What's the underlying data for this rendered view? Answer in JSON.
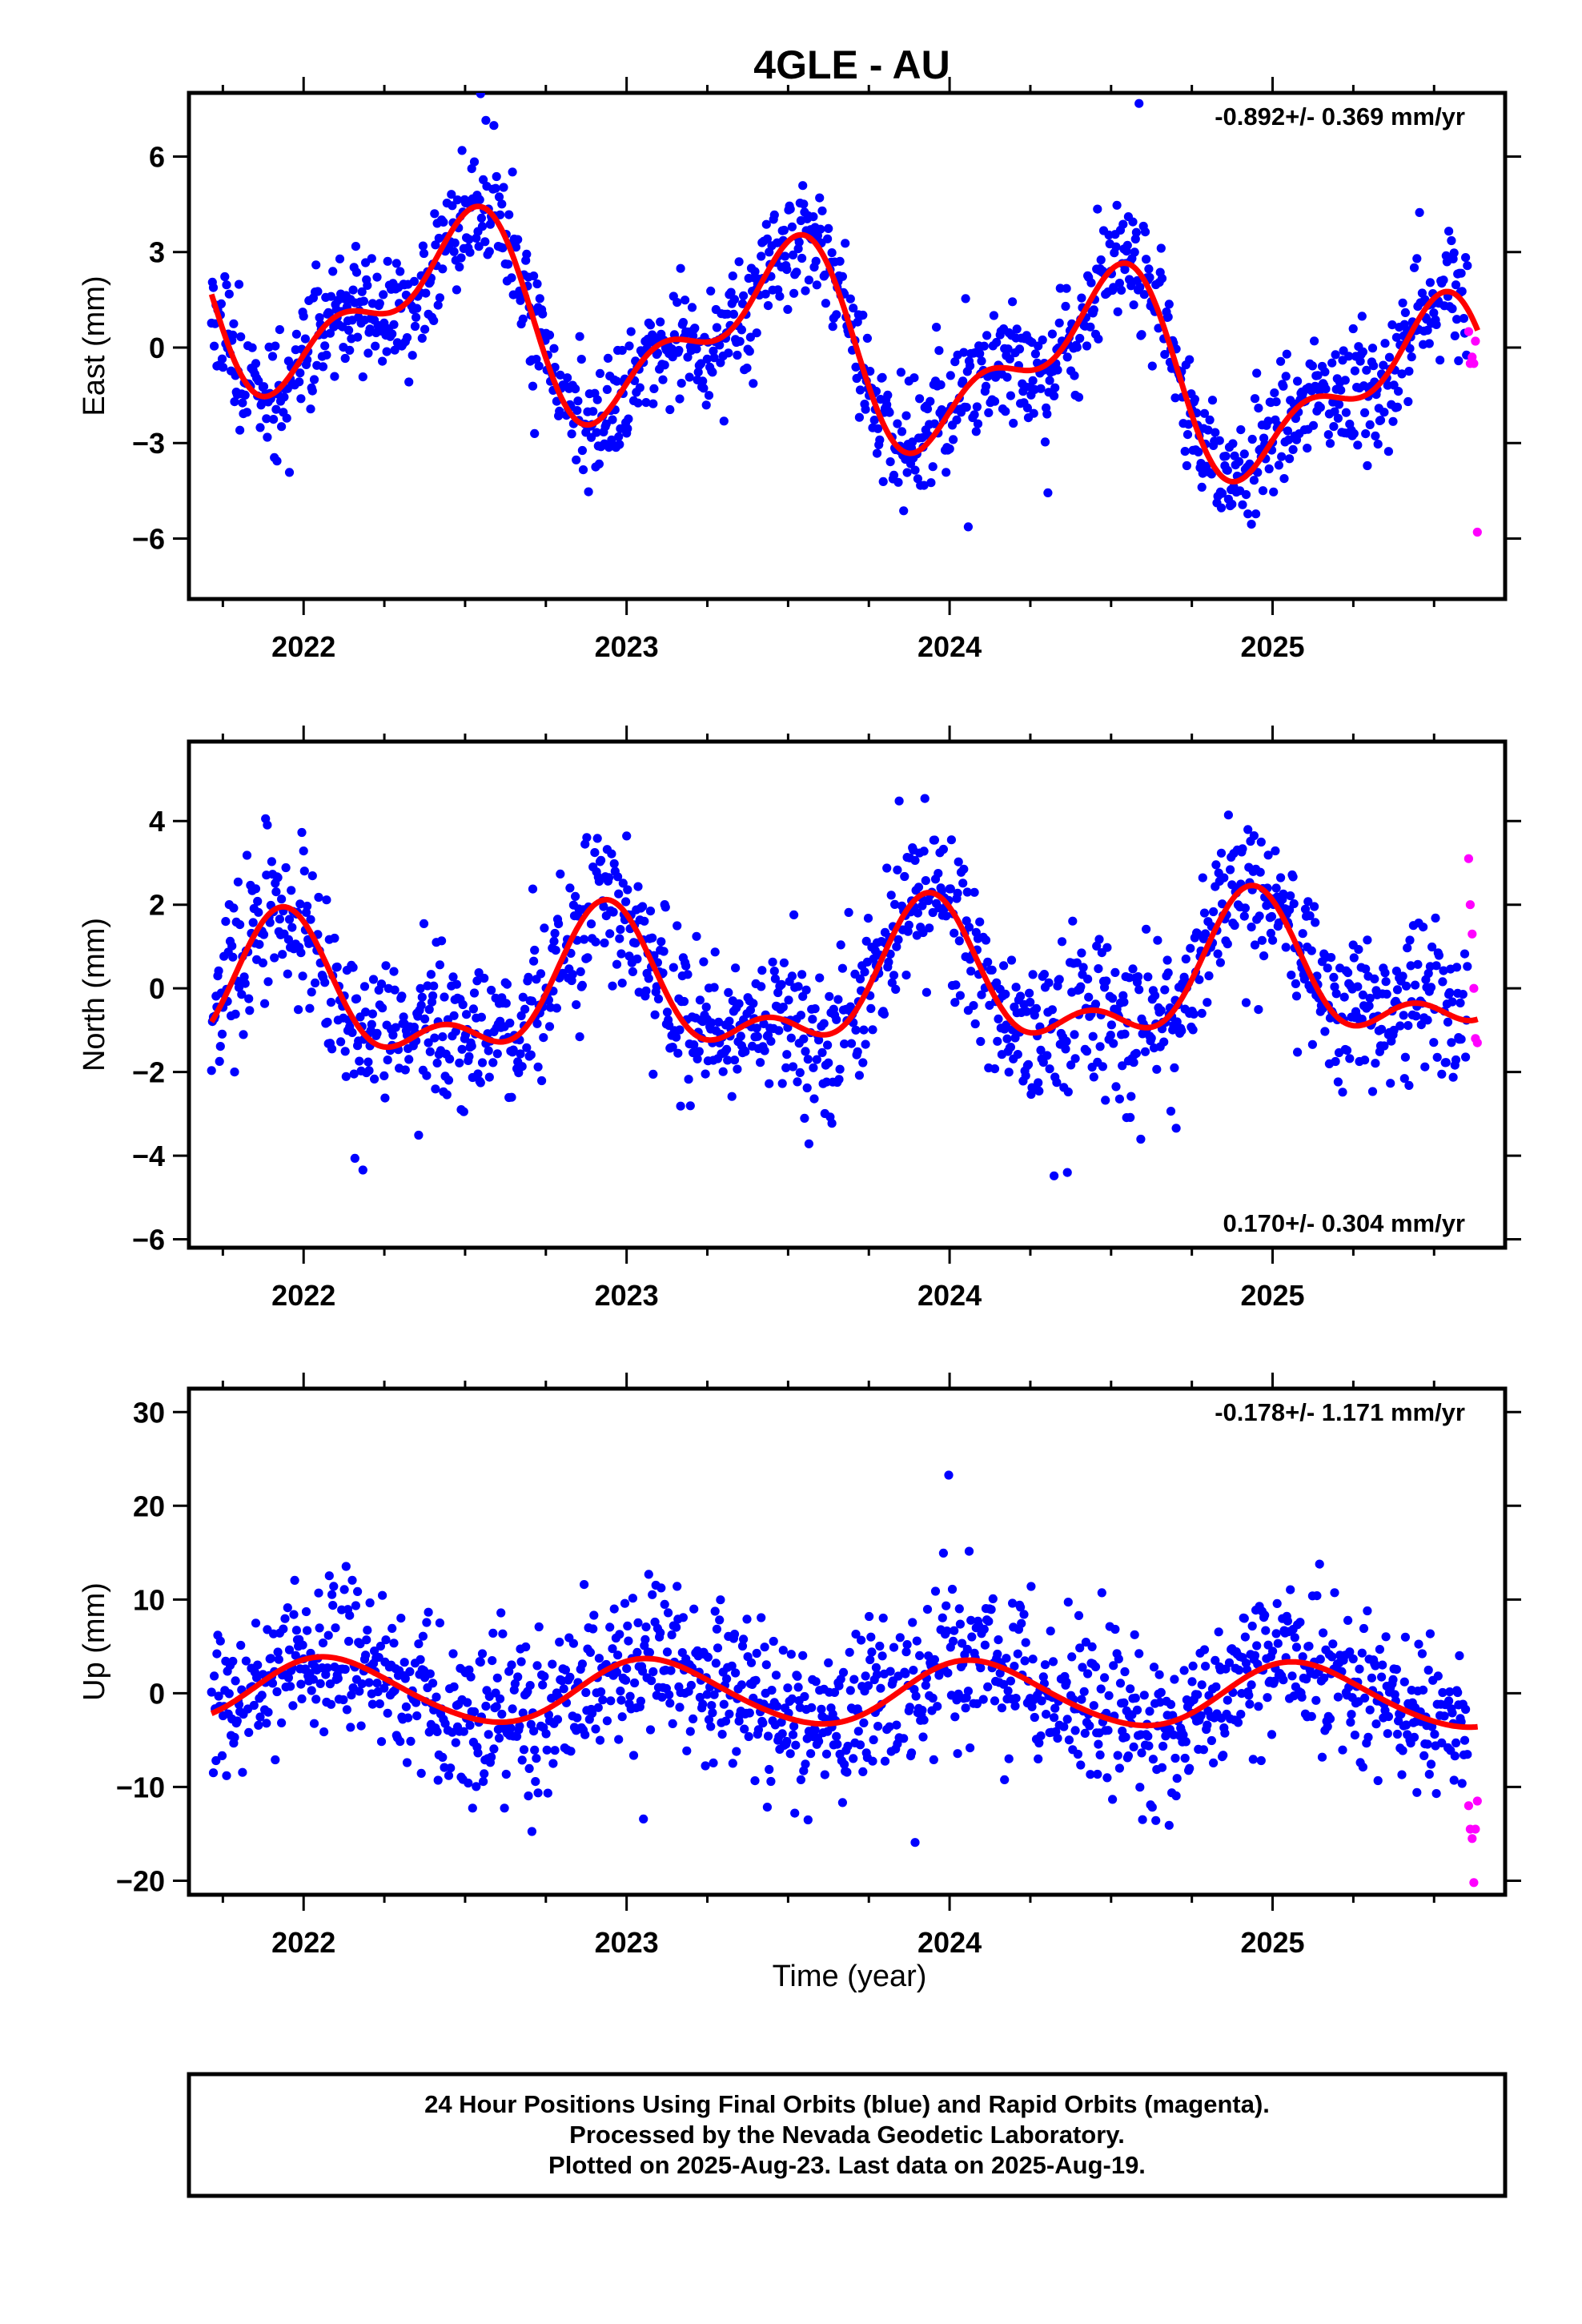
{
  "figure": {
    "title": "4GLE - AU",
    "xlabel": "Time (year)",
    "footer_lines": [
      "24 Hour Positions Using Final Orbits (blue) and Rapid Orbits (magenta).",
      "Processed by the Nevada Geodetic Laboratory.",
      "Plotted on 2025-Aug-23. Last data on 2025-Aug-19."
    ]
  },
  "colors": {
    "final_orbits": "#0000ff",
    "rapid_orbits": "#ff00ff",
    "model_fit": "#ff0000",
    "frame": "#000000"
  },
  "chart_data": [
    {
      "type": "scatter",
      "ylabel": "East (mm)",
      "rate_text": "-0.892+/- 0.369 mm/yr",
      "rate_position": "top-right",
      "xlim": [
        2021.645,
        2025.72
      ],
      "ylim": [
        -7.9,
        8.0
      ],
      "yticks": [
        -6,
        -3,
        0,
        3,
        6
      ],
      "xticks": [
        2022,
        2023,
        2024,
        2025
      ],
      "series": [
        {
          "name": "Final Orbits",
          "color": "#0000ff",
          "mean": -0.892,
          "amp": [
            2.5,
            1.3
          ],
          "phase": [
            2.95,
            1.0
          ],
          "scatter": 0.95,
          "seed": 11,
          "start": 2021.715,
          "end": 2025.605,
          "step": 0.00274
        },
        {
          "name": "Rapid Orbits",
          "color": "#ff00ff",
          "x": [
            2025.607,
            2025.612,
            2025.618,
            2025.623,
            2025.628,
            2025.634
          ],
          "y": [
            0.5,
            -0.5,
            -0.3,
            -0.5,
            0.2,
            -5.8
          ]
        },
        {
          "name": "Model",
          "color": "#ff0000",
          "mean": -0.892,
          "amp": [
            2.5,
            1.3
          ],
          "phase": [
            2.95,
            1.0
          ],
          "start": 2021.715,
          "end": 2025.635
        }
      ]
    },
    {
      "type": "scatter",
      "ylabel": "North (mm)",
      "rate_text": "0.170+/- 0.304 mm/yr",
      "rate_position": "bottom-right",
      "xlim": [
        2021.645,
        2025.72
      ],
      "ylim": [
        -6.2,
        5.9
      ],
      "yticks": [
        -6,
        -4,
        -2,
        0,
        2,
        4
      ],
      "xticks": [
        2022,
        2023,
        2024,
        2025
      ],
      "series": [
        {
          "name": "Final Orbits",
          "color": "#0000ff",
          "mean": 0.17,
          "amp": [
            1.45,
            0.8
          ],
          "phase": [
            -0.42,
            -0.79
          ],
          "scatter": 0.9,
          "seed": 23,
          "start": 2021.715,
          "end": 2025.605,
          "step": 0.00274
        },
        {
          "name": "Rapid Orbits",
          "color": "#ff00ff",
          "x": [
            2025.607,
            2025.612,
            2025.618,
            2025.623,
            2025.628,
            2025.634
          ],
          "y": [
            3.1,
            2.0,
            1.3,
            0.0,
            -1.2,
            -1.3
          ]
        },
        {
          "name": "Model",
          "color": "#ff0000",
          "mean": 0.17,
          "amp": [
            1.45,
            0.8
          ],
          "phase": [
            -0.42,
            -0.79
          ],
          "start": 2021.715,
          "end": 2025.635
        }
      ]
    },
    {
      "type": "scatter",
      "ylabel": "Up (mm)",
      "rate_text": "-0.178+/- 1.171 mm/yr",
      "rate_position": "top-right",
      "xlim": [
        2021.645,
        2025.72
      ],
      "ylim": [
        -21.5,
        32.5
      ],
      "yticks": [
        -20,
        -10,
        0,
        10,
        20,
        30
      ],
      "xticks": [
        2022,
        2023,
        2024,
        2025
      ],
      "series": [
        {
          "name": "Final Orbits",
          "color": "#0000ff",
          "mean": -0.178,
          "amp": [
            3.4,
            0.3
          ],
          "phase": [
            0.5,
            0.0
          ],
          "scatter": 4.2,
          "seed": 37,
          "start": 2021.715,
          "end": 2025.605,
          "step": 0.00274
        },
        {
          "name": "Rapid Orbits",
          "color": "#ff00ff",
          "x": [
            2025.607,
            2025.612,
            2025.618,
            2025.623,
            2025.628,
            2025.634
          ],
          "y": [
            -12.0,
            -14.5,
            -15.5,
            -20.2,
            -14.5,
            -11.5
          ]
        },
        {
          "name": "Model",
          "color": "#ff0000",
          "mean": -0.178,
          "amp": [
            3.4,
            0.3
          ],
          "phase": [
            0.5,
            0.0
          ],
          "start": 2021.715,
          "end": 2025.635
        }
      ]
    }
  ]
}
